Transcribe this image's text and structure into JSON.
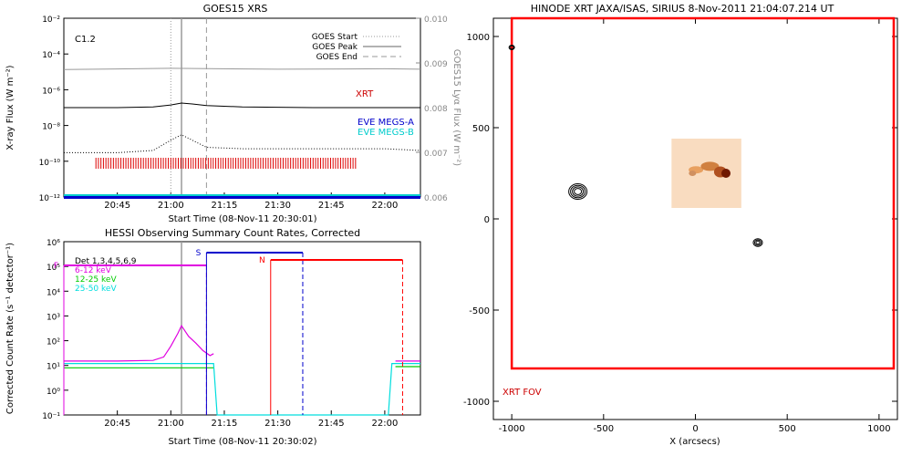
{
  "chart_data": [
    {
      "panel": "goes-xrs",
      "type": "line",
      "title": "GOES15 XRS",
      "xlabel": "Start Time (08-Nov-11 20:30:01)",
      "ylabel": "X-ray Flux (W m⁻²)",
      "y2label": "GOES15 Lyα Flux (W m⁻²)",
      "y_scale": "log",
      "ylim": [
        1e-12,
        0.01
      ],
      "y2lim": [
        0.006,
        0.01
      ],
      "xlim": [
        "20:30",
        "22:10"
      ],
      "x_ticks": [
        "20:45",
        "21:00",
        "21:15",
        "21:30",
        "21:45",
        "22:00"
      ],
      "y_ticks": [
        "10⁻¹²",
        "10⁻¹⁰",
        "10⁻⁸",
        "10⁻⁶",
        "10⁻⁴",
        "10⁻²"
      ],
      "y2_ticks": [
        "0.006",
        "0.007",
        "0.008",
        "0.009",
        "0.010"
      ],
      "class_label": "C1.2",
      "legend": [
        "GOES Start",
        "GOES Peak",
        "GOES End"
      ],
      "legend_position": "top-right",
      "markers": {
        "start": "21:00",
        "peak": "21:03",
        "end": "21:10"
      },
      "series_labels": [
        "XRT",
        "EVE MEGS-A",
        "EVE MEGS-B"
      ],
      "series": [
        {
          "name": "GOES long",
          "color": "#000000",
          "x": [
            "20:30",
            "20:45",
            "20:55",
            "21:00",
            "21:03",
            "21:06",
            "21:10",
            "21:20",
            "21:40",
            "22:00",
            "22:10"
          ],
          "values": [
            1e-07,
            1e-07,
            1.1e-07,
            1.4e-07,
            1.8e-07,
            1.6e-07,
            1.3e-07,
            1.1e-07,
            1e-07,
            1e-07,
            1e-07
          ]
        },
        {
          "name": "GOES Lyα",
          "color": "#999999",
          "x": [
            "20:30",
            "21:00",
            "21:30",
            "22:00",
            "22:10"
          ],
          "values": [
            0.00885,
            0.00888,
            0.00886,
            0.00887,
            0.00886
          ]
        },
        {
          "name": "GOES short",
          "color": "#000000",
          "x": [
            "20:30",
            "20:45",
            "20:55",
            "21:00",
            "21:03",
            "21:06",
            "21:10",
            "21:20",
            "21:40",
            "22:00",
            "22:10"
          ],
          "values": [
            3e-10,
            3e-10,
            4e-10,
            1.5e-09,
            3e-09,
            1.5e-09,
            6e-10,
            5e-10,
            5e-10,
            5e-10,
            4e-10
          ]
        }
      ],
      "xrt_times_range": [
        "20:39",
        "21:52"
      ],
      "eve_level": 1e-12
    },
    {
      "panel": "hessi",
      "type": "line",
      "title": "HESSI Observing Summary Count Rates, Corrected",
      "xlabel": "Start Time (08-Nov-11 20:30:02)",
      "ylabel": "Corrected Count Rate (s⁻¹ detector⁻¹)",
      "y_scale": "log",
      "ylim": [
        0.1,
        1000000.0
      ],
      "xlim": [
        "20:30",
        "22:10"
      ],
      "x_ticks": [
        "20:45",
        "21:00",
        "21:15",
        "21:30",
        "21:45",
        "22:00"
      ],
      "y_ticks": [
        "10⁻¹",
        "10⁰",
        "10¹",
        "10²",
        "10³",
        "10⁴",
        "10⁵",
        "10⁶"
      ],
      "legend": [
        "Det 1,3,4,5,6,9",
        "6-12 keV",
        "12-25 keV",
        "25-50 keV"
      ],
      "legend_colors": [
        "#000000",
        "#e000e0",
        "#00cc00",
        "#00dddd"
      ],
      "legend_position": "top-left",
      "flags": [
        {
          "label": "F",
          "color": "#e000e0",
          "from": "20:30",
          "to": "21:10"
        },
        {
          "label": "S",
          "color": "#0000cc",
          "from": "21:10",
          "to": "21:37"
        },
        {
          "label": "N",
          "color": "#ff0000",
          "from": "21:28",
          "to": "22:05"
        }
      ],
      "series": [
        {
          "name": "6-12 keV",
          "color": "#e000e0",
          "x": [
            "20:30",
            "20:45",
            "20:55",
            "20:58",
            "21:00",
            "21:02",
            "21:03",
            "21:05",
            "21:07",
            "21:09",
            "21:11",
            "21:12",
            "21:13",
            "22:02",
            "22:03",
            "22:10"
          ],
          "values": [
            15,
            15,
            16,
            22,
            60,
            200,
            400,
            150,
            80,
            40,
            25,
            30,
            null,
            null,
            15,
            15
          ]
        },
        {
          "name": "12-25 keV",
          "color": "#00cc00",
          "x": [
            "20:30",
            "20:45",
            "21:00",
            "21:05",
            "21:10",
            "21:12",
            "21:13",
            "22:02",
            "22:03",
            "22:10"
          ],
          "values": [
            8,
            8,
            8,
            8,
            8,
            8,
            null,
            null,
            9,
            9
          ]
        },
        {
          "name": "25-50 keV",
          "color": "#00dddd",
          "x": [
            "20:30",
            "20:45",
            "21:00",
            "21:10",
            "21:12",
            "21:13",
            "22:01",
            "22:02",
            "22:10"
          ],
          "values": [
            12,
            12,
            12,
            12,
            12,
            0.1,
            0.1,
            12,
            12
          ]
        }
      ]
    },
    {
      "panel": "hinode-xrt",
      "type": "scatter",
      "title": "HINODE XRT JAXA/ISAS, SIRIUS   8-Nov-2011 21:04:07.214 UT",
      "xlabel": "X (arcsecs)",
      "ylabel": "",
      "xlim": [
        -1100,
        1100
      ],
      "ylim": [
        -1100,
        1100
      ],
      "x_ticks": [
        "-1000",
        "-500",
        "0",
        "500",
        "1000"
      ],
      "y_ticks": [
        "-1000",
        "-500",
        "0",
        "500",
        "1000"
      ],
      "fov_label": "XRT FOV",
      "fov_color": "#ff0000",
      "fov_box": {
        "x": [
          -1000,
          1080
        ],
        "y": [
          -820,
          1100
        ]
      },
      "image_box": {
        "x": [
          -130,
          250
        ],
        "y": [
          60,
          440
        ]
      },
      "contours": [
        {
          "x": -640,
          "y": 150
        },
        {
          "x": 340,
          "y": -130
        },
        {
          "x": -1000,
          "y": 940
        }
      ]
    }
  ]
}
